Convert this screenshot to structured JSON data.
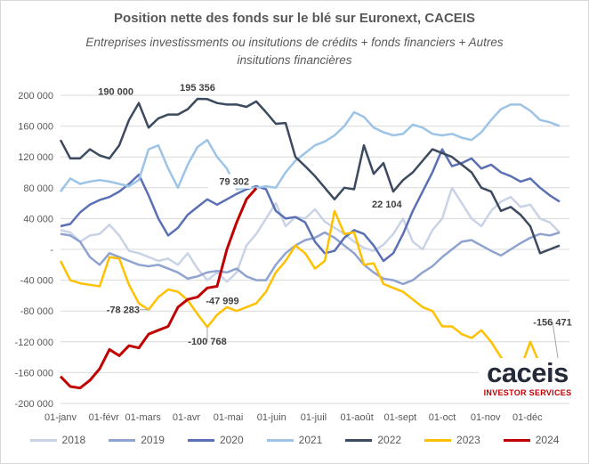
{
  "chart_data": {
    "type": "line",
    "title": "Position nette des fonds sur le blé sur Euronext, CACEIS",
    "subtitle_lines": [
      "Entreprises investissments ou insitutions de crédits + fonds financiers + Autres",
      "insitutions financières"
    ],
    "xlabel": "",
    "ylabel": "",
    "ylim": [
      -200000,
      200000
    ],
    "yticks": [
      200000,
      160000,
      120000,
      80000,
      40000,
      0,
      -40000,
      -80000,
      -120000,
      -160000,
      -200000
    ],
    "ytick_labels": [
      "200 000",
      "160 000",
      "120 000",
      "80 000",
      "40 000",
      "-",
      "-40 000",
      "-80 000",
      "-120 000",
      "-160 000",
      "-200 000"
    ],
    "xlim": [
      0,
      52
    ],
    "x_unit": "week of year",
    "xtick_positions": [
      0,
      4.43,
      8.43,
      12.86,
      17.14,
      21.57,
      25.86,
      30.29,
      34.71,
      39,
      43.43,
      47.71
    ],
    "xtick_labels": [
      "01-janv",
      "01-févr",
      "01-mars",
      "01-avr",
      "01-mai",
      "01-juin",
      "01-juil",
      "01-août",
      "01-sept",
      "01-oct",
      "01-nov",
      "01-déc"
    ],
    "grid": "horizontal",
    "legend_position": "bottom",
    "series": [
      {
        "name": "2018",
        "color": "#c9d3e6",
        "x": [
          0,
          1,
          2,
          3,
          4,
          5,
          6,
          7,
          8,
          9,
          10,
          11,
          12,
          13,
          14,
          15,
          16,
          17,
          18,
          19,
          20,
          21,
          22,
          23,
          24,
          25,
          26,
          27,
          28,
          29,
          30,
          31,
          32,
          33,
          34,
          35,
          36,
          37,
          38,
          39,
          40,
          41,
          42,
          43,
          44,
          45,
          46,
          47,
          48,
          49,
          50,
          51
        ],
        "y": [
          25000,
          22000,
          10000,
          18000,
          20000,
          32000,
          18000,
          -2000,
          -5000,
          -10000,
          -15000,
          -12000,
          -20000,
          -5000,
          -25000,
          -40000,
          -30000,
          -42000,
          -30000,
          5000,
          20000,
          40000,
          60000,
          30000,
          42000,
          40000,
          52000,
          36000,
          28000,
          20000,
          10000,
          2000,
          -2000,
          6000,
          20000,
          40000,
          10000,
          0,
          25000,
          40000,
          80000,
          60000,
          40000,
          30000,
          50000,
          62000,
          68000,
          55000,
          58000,
          40000,
          35000,
          22000
        ]
      },
      {
        "name": "2019",
        "color": "#8ea3cf",
        "x": [
          0,
          1,
          2,
          3,
          4,
          5,
          6,
          7,
          8,
          9,
          10,
          11,
          12,
          13,
          14,
          15,
          16,
          17,
          18,
          19,
          20,
          21,
          22,
          23,
          24,
          25,
          26,
          27,
          28,
          29,
          30,
          31,
          32,
          33,
          34,
          35,
          36,
          37,
          38,
          39,
          40,
          41,
          42,
          43,
          44,
          45,
          46,
          47,
          48,
          49,
          50,
          51
        ],
        "y": [
          20000,
          18000,
          10000,
          -10000,
          -20000,
          -5000,
          -10000,
          -15000,
          -20000,
          -22000,
          -20000,
          -25000,
          -30000,
          -38000,
          -35000,
          -30000,
          -28000,
          -30000,
          -25000,
          -35000,
          -40000,
          -40000,
          -20000,
          -5000,
          5000,
          12000,
          15000,
          22000,
          15000,
          5000,
          -5000,
          -20000,
          -30000,
          -38000,
          -40000,
          -45000,
          -40000,
          -30000,
          -22000,
          -10000,
          0,
          10000,
          12000,
          5000,
          -2000,
          -8000,
          0,
          8000,
          15000,
          20000,
          18000,
          22000
        ]
      },
      {
        "name": "2020",
        "color": "#5b70b4",
        "x": [
          0,
          1,
          2,
          3,
          4,
          5,
          6,
          7,
          8,
          9,
          10,
          11,
          12,
          13,
          14,
          15,
          16,
          17,
          18,
          19,
          20,
          21,
          22,
          23,
          24,
          25,
          26,
          27,
          28,
          29,
          30,
          31,
          32,
          33,
          34,
          35,
          36,
          37,
          38,
          39,
          40,
          41,
          42,
          43,
          44,
          45,
          46,
          47,
          48,
          49,
          50,
          51
        ],
        "y": [
          30000,
          33000,
          48000,
          58000,
          64000,
          68000,
          75000,
          85000,
          97000,
          70000,
          40000,
          18000,
          28000,
          45000,
          55000,
          65000,
          58000,
          65000,
          72000,
          78000,
          82000,
          78000,
          50000,
          40000,
          42000,
          35000,
          10000,
          -5000,
          -2000,
          15000,
          25000,
          20000,
          5000,
          -15000,
          -5000,
          20000,
          50000,
          75000,
          100000,
          130000,
          108000,
          112000,
          118000,
          105000,
          110000,
          100000,
          95000,
          88000,
          92000,
          80000,
          70000,
          62000
        ]
      },
      {
        "name": "2021",
        "color": "#9dc3e6",
        "x": [
          0,
          1,
          2,
          3,
          4,
          5,
          6,
          7,
          8,
          9,
          10,
          11,
          12,
          13,
          14,
          15,
          16,
          17,
          18,
          19,
          20,
          21,
          22,
          23,
          24,
          25,
          26,
          27,
          28,
          29,
          30,
          31,
          32,
          33,
          34,
          35,
          36,
          37,
          38,
          39,
          40,
          41,
          42,
          43,
          44,
          45,
          46,
          47,
          48,
          49,
          50,
          51
        ],
        "y": [
          75000,
          92000,
          85000,
          88000,
          90000,
          88000,
          85000,
          82000,
          90000,
          130000,
          135000,
          105000,
          80000,
          110000,
          133000,
          142000,
          120000,
          105000,
          78000,
          80000,
          80000,
          82000,
          80000,
          100000,
          115000,
          125000,
          135000,
          140000,
          148000,
          160000,
          178000,
          172000,
          158000,
          152000,
          148000,
          150000,
          162000,
          158000,
          150000,
          148000,
          150000,
          145000,
          142000,
          152000,
          168000,
          182000,
          188000,
          188000,
          180000,
          168000,
          165000,
          160000
        ]
      },
      {
        "name": "2022",
        "color": "#3b4a5e",
        "x": [
          0,
          1,
          2,
          3,
          4,
          5,
          6,
          7,
          8,
          9,
          10,
          11,
          12,
          13,
          14,
          15,
          16,
          17,
          18,
          19,
          20,
          21,
          22,
          23,
          24,
          25,
          26,
          27,
          28,
          29,
          30,
          31,
          32,
          33,
          34,
          35,
          36,
          37,
          38,
          39,
          40,
          41,
          42,
          43,
          44,
          45,
          46,
          47,
          48,
          49,
          50,
          51
        ],
        "y": [
          142000,
          118000,
          118000,
          130000,
          122000,
          118000,
          135000,
          168000,
          190000,
          158000,
          170000,
          175000,
          175000,
          182000,
          195356,
          195000,
          190000,
          188000,
          188000,
          185000,
          192000,
          178000,
          163000,
          164000,
          120000,
          108000,
          95000,
          80000,
          65000,
          80000,
          78000,
          135000,
          98000,
          112000,
          75000,
          90000,
          100000,
          115000,
          130000,
          125000,
          120000,
          110000,
          100000,
          80000,
          75000,
          50000,
          55000,
          45000,
          30000,
          -5000,
          0,
          5000
        ]
      },
      {
        "name": "2023",
        "color": "#ffc000",
        "x": [
          0,
          1,
          2,
          3,
          4,
          5,
          6,
          7,
          8,
          9,
          10,
          11,
          12,
          13,
          14,
          15,
          16,
          17,
          18,
          19,
          20,
          21,
          22,
          23,
          24,
          25,
          26,
          27,
          28,
          29,
          30,
          31,
          32,
          33,
          34,
          35,
          36,
          37,
          38,
          39,
          40,
          41,
          42,
          43,
          44,
          45,
          46,
          47,
          48,
          49,
          50,
          51
        ],
        "y": [
          -15000,
          -40000,
          -44000,
          -46000,
          -48000,
          -10000,
          -12000,
          -46000,
          -70000,
          -78283,
          -62000,
          -52000,
          -55000,
          -66000,
          -84000,
          -100768,
          -85000,
          -75000,
          -80000,
          -75000,
          -70000,
          -55000,
          -30000,
          -15000,
          5000,
          -5000,
          -25000,
          -15000,
          50000,
          20000,
          22104,
          -20000,
          -18000,
          -45000,
          -50000,
          -55000,
          -65000,
          -75000,
          -80000,
          -100000,
          -100000,
          -110000,
          -115000,
          -105000,
          -120000,
          -140000,
          -155000,
          -155000,
          -120000,
          -150000,
          -155000,
          -156471
        ]
      },
      {
        "name": "2024",
        "color": "#c00000",
        "x": [
          0,
          1,
          2,
          3,
          4,
          5,
          6,
          7,
          8,
          9,
          10,
          11,
          12,
          13,
          14,
          15,
          16,
          17,
          18,
          19,
          20
        ],
        "y": [
          -165000,
          -178000,
          -180000,
          -170000,
          -155000,
          -130000,
          -138000,
          -125000,
          -128000,
          -110000,
          -105000,
          -100000,
          -75000,
          -65000,
          -62000,
          -50000,
          -47999,
          0,
          35000,
          65000,
          79302
        ]
      }
    ],
    "annotations": [
      {
        "text": "190 000",
        "x": 8,
        "y": 190000,
        "series": "2022"
      },
      {
        "text": "195 356",
        "x": 14,
        "y": 195356,
        "series": "2022"
      },
      {
        "text": "79 302",
        "x": 20,
        "y": 79302,
        "series": "2024"
      },
      {
        "text": "-47 999",
        "x": 16,
        "y": -47999,
        "series": "2024"
      },
      {
        "text": "22 104",
        "x": 30,
        "y": 22104,
        "series": "2023"
      },
      {
        "text": "-78 283",
        "x": 9,
        "y": -78283,
        "series": "2023"
      },
      {
        "text": "-100 768",
        "x": 15,
        "y": -100768,
        "series": "2023"
      },
      {
        "text": "-156 471",
        "x": 51,
        "y": -156471,
        "series": "2023"
      }
    ]
  },
  "logo": {
    "name": "caceis",
    "tagline": "INVESTOR SERVICES"
  }
}
